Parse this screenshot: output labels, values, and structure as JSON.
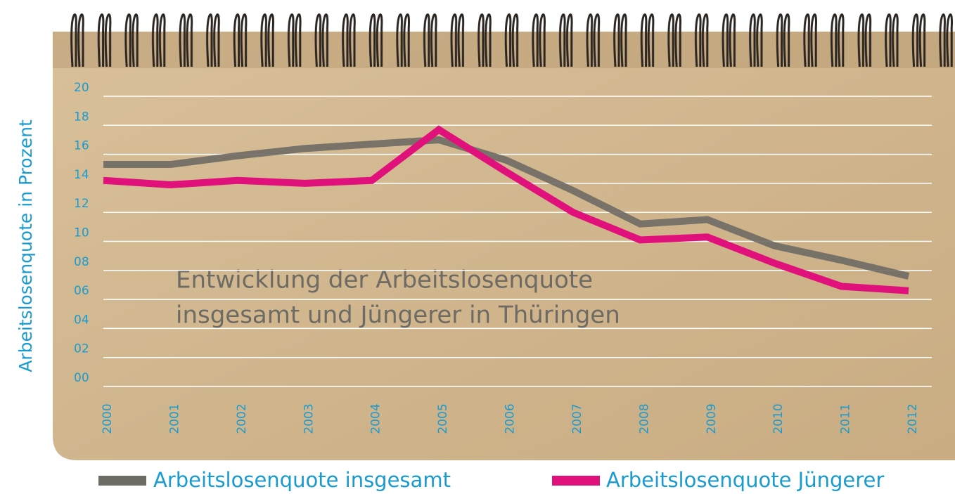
{
  "chart_data": {
    "type": "line",
    "title": [
      "Entwicklung der Arbeitslosenquote",
      "insgesamt und Jüngerer in Thüringen"
    ],
    "y_label": "Arbeitslosenquote in Prozent",
    "categories": [
      "2000",
      "2001",
      "2002",
      "2003",
      "2004",
      "2005",
      "2006",
      "2007",
      "2008",
      "2009",
      "2010",
      "2011",
      "2012"
    ],
    "series": [
      {
        "name": "Arbeitslosenquote insgesamt",
        "color": "#6e6a64",
        "values": [
          15.3,
          15.3,
          15.9,
          16.4,
          16.7,
          17.0,
          15.6,
          13.5,
          11.2,
          11.5,
          9.7,
          8.7,
          7.6
        ]
      },
      {
        "name": "Arbeitslosenquote Jüngerer",
        "color": "#e0117a",
        "values": [
          14.2,
          13.9,
          14.2,
          14.0,
          14.2,
          17.7,
          14.8,
          12.0,
          10.1,
          10.3,
          8.5,
          6.9,
          6.6
        ]
      }
    ],
    "ylim": [
      0,
      20
    ],
    "yticks": [
      {
        "value": 0,
        "label": "00"
      },
      {
        "value": 2,
        "label": "02"
      },
      {
        "value": 4,
        "label": "04"
      },
      {
        "value": 6,
        "label": "06"
      },
      {
        "value": 8,
        "label": "08"
      },
      10,
      12,
      14,
      16,
      18,
      20
    ],
    "grid": true
  }
}
